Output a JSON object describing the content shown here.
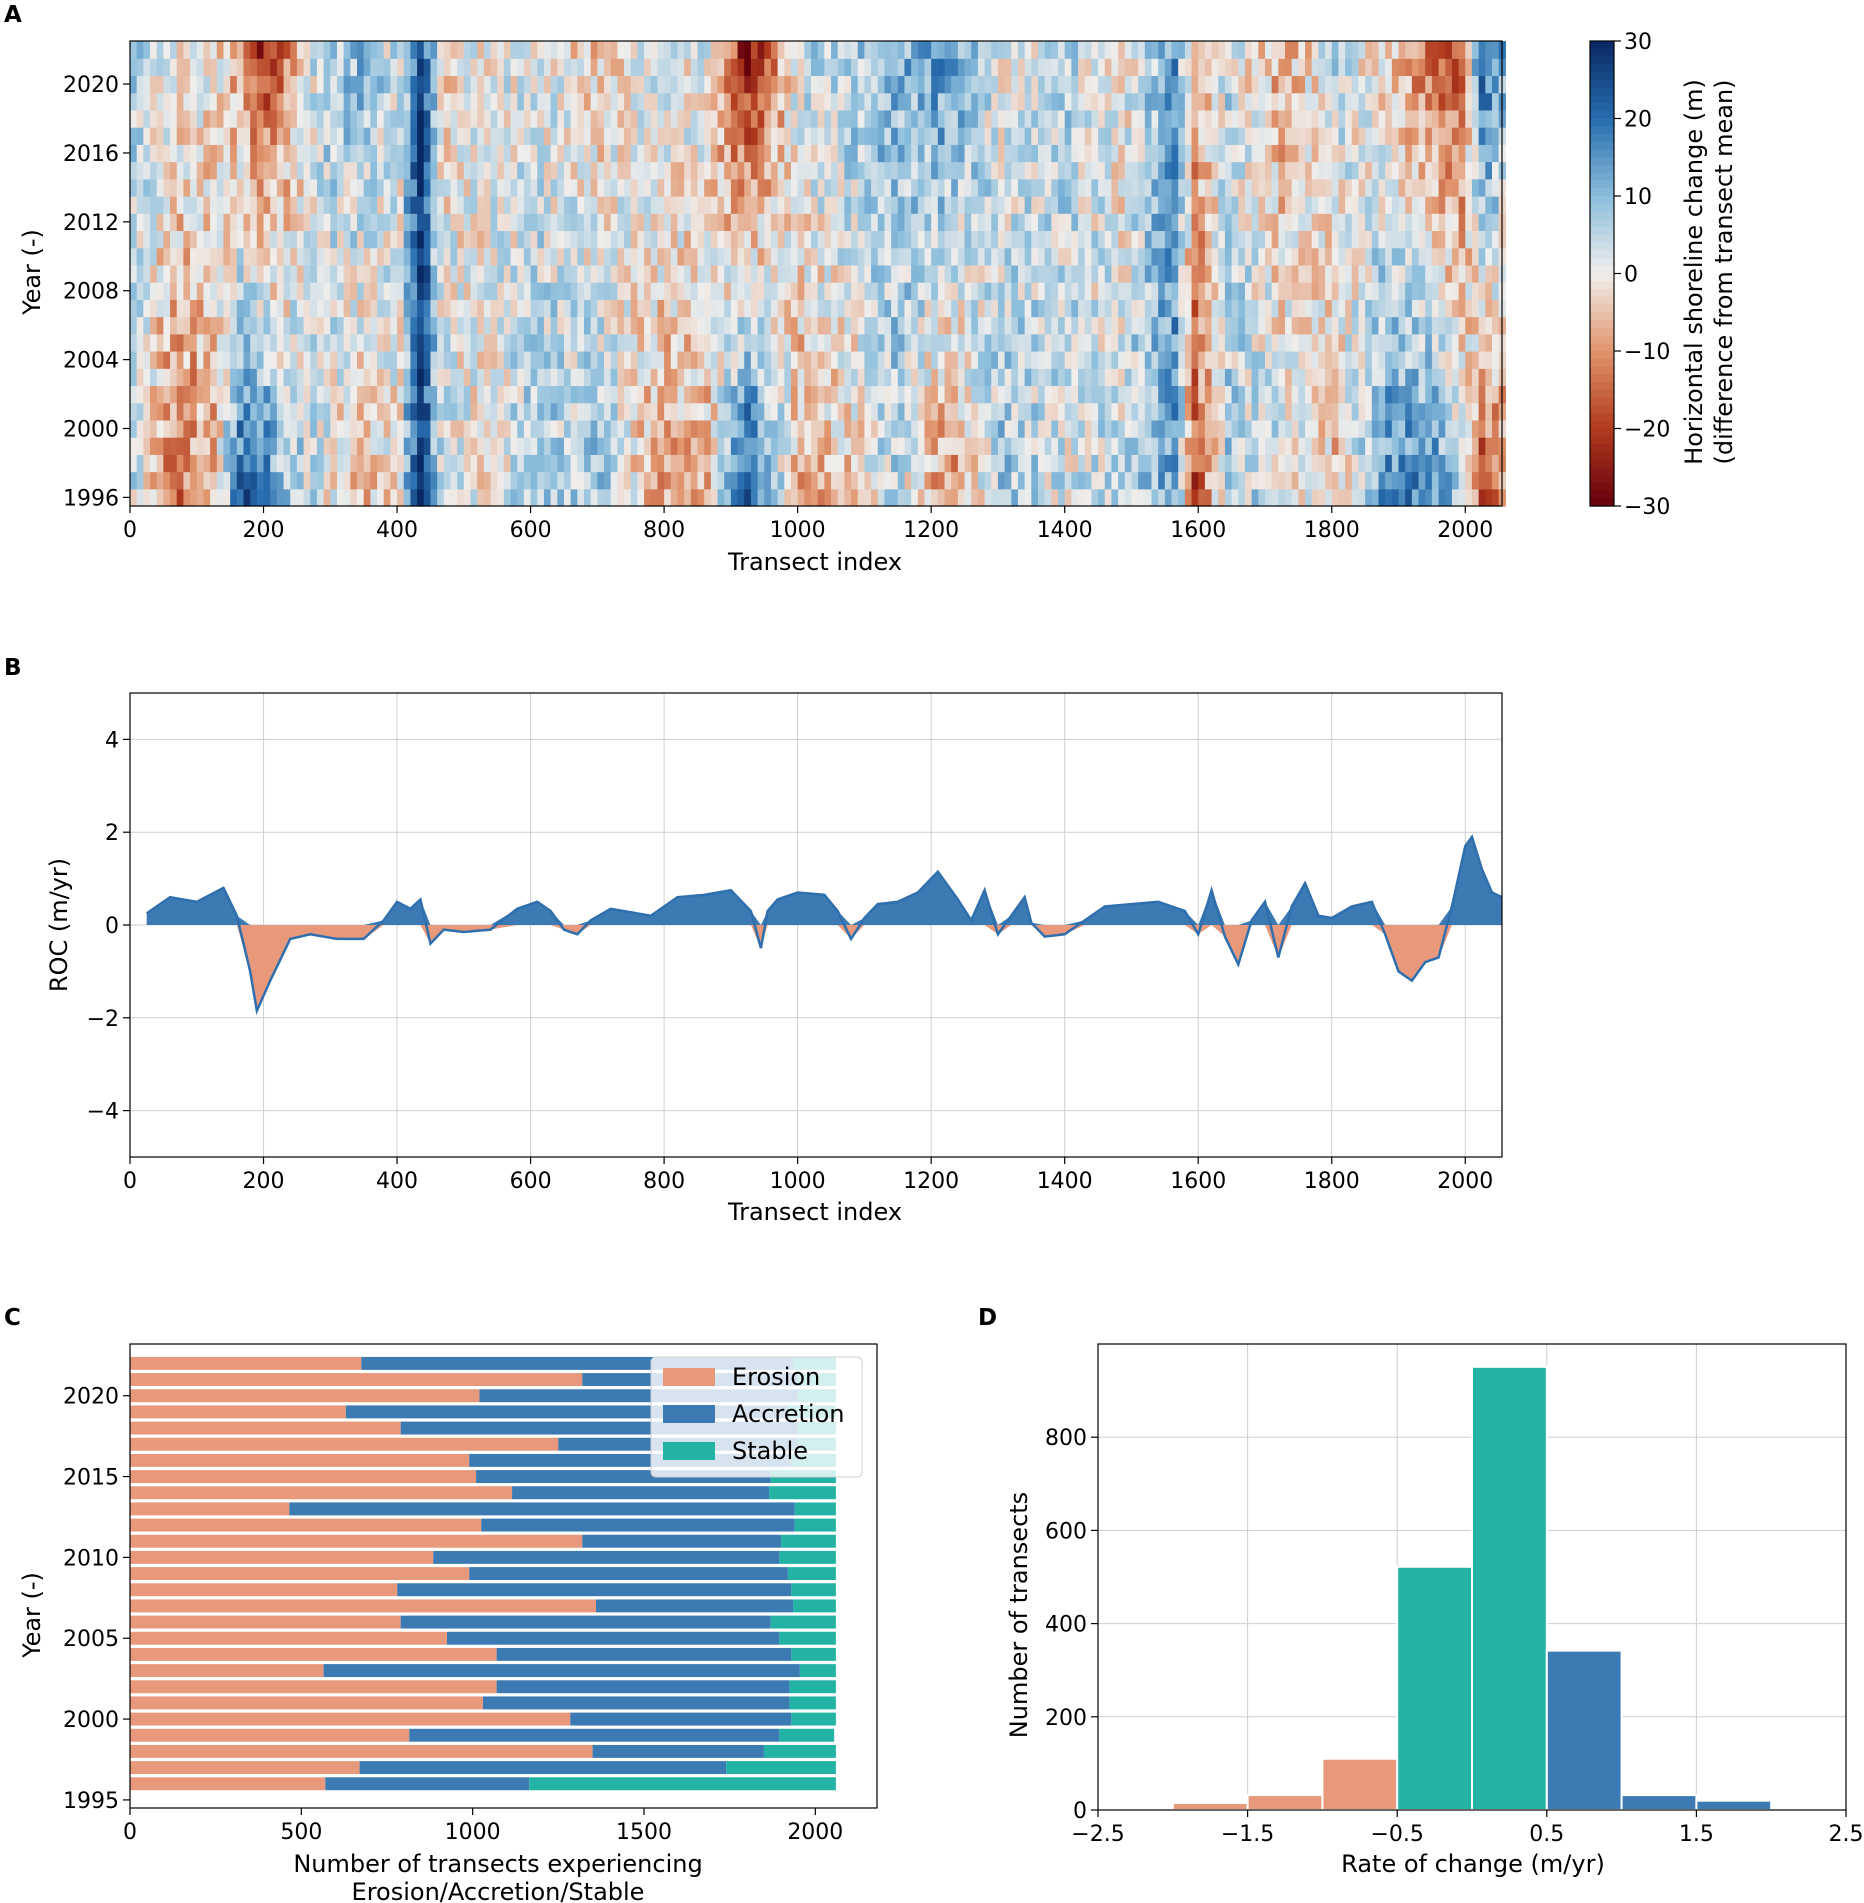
{
  "panels": {
    "a": "A",
    "b": "B",
    "c": "C",
    "d": "D"
  },
  "chart_data": [
    {
      "panel": "A",
      "type": "heatmap",
      "xlabel": "Transect index",
      "ylabel": "Year (-)",
      "xlim": [
        0,
        2055
      ],
      "ylim": [
        1995.5,
        2022.5
      ],
      "xticks": [
        0,
        200,
        400,
        600,
        800,
        1000,
        1200,
        1400,
        1600,
        1800,
        2000
      ],
      "yticks": [
        1996,
        2000,
        2004,
        2008,
        2012,
        2016,
        2020
      ],
      "colorbar": {
        "label_line1": "Horizontal shoreline change (m)",
        "label_line2": "(difference from transect mean)",
        "range": [
          -30,
          30
        ],
        "ticks": [
          "−30",
          "−20",
          "−10",
          "0",
          "10",
          "20",
          "30"
        ],
        "colormap": "red-white-blue"
      },
      "years": [
        1996,
        1997,
        1998,
        1999,
        2000,
        2001,
        2002,
        2003,
        2004,
        2005,
        2006,
        2007,
        2008,
        2009,
        2010,
        2011,
        2012,
        2013,
        2014,
        2015,
        2016,
        2017,
        2018,
        2019,
        2020,
        2021,
        2022
      ],
      "column_pattern": [
        {
          "x": 0,
          "early": 4,
          "late": 6
        },
        {
          "x": 60,
          "early": -14,
          "late": 2
        },
        {
          "x": 120,
          "early": -8,
          "late": 0
        },
        {
          "x": 160,
          "early": 20,
          "late": -10
        },
        {
          "x": 190,
          "early": 22,
          "late": -22
        },
        {
          "x": 220,
          "early": 10,
          "late": -14
        },
        {
          "x": 280,
          "early": 2,
          "late": 6
        },
        {
          "x": 340,
          "early": -6,
          "late": 10
        },
        {
          "x": 400,
          "early": 0,
          "late": 2
        },
        {
          "x": 430,
          "early": 28,
          "late": 28
        },
        {
          "x": 460,
          "early": 4,
          "late": -2
        },
        {
          "x": 520,
          "early": 0,
          "late": 0
        },
        {
          "x": 600,
          "early": 6,
          "late": 2
        },
        {
          "x": 700,
          "early": 8,
          "late": -4
        },
        {
          "x": 780,
          "early": -8,
          "late": 4
        },
        {
          "x": 860,
          "early": -6,
          "late": 0
        },
        {
          "x": 920,
          "early": 26,
          "late": -26
        },
        {
          "x": 1000,
          "early": -8,
          "late": 4
        },
        {
          "x": 1080,
          "early": -4,
          "late": 8
        },
        {
          "x": 1140,
          "early": 6,
          "late": 10
        },
        {
          "x": 1220,
          "early": -12,
          "late": 16
        },
        {
          "x": 1300,
          "early": 8,
          "late": 0
        },
        {
          "x": 1400,
          "early": 2,
          "late": 6
        },
        {
          "x": 1480,
          "early": 4,
          "late": -2
        },
        {
          "x": 1560,
          "early": 14,
          "late": 14
        },
        {
          "x": 1590,
          "early": -18,
          "late": -6
        },
        {
          "x": 1640,
          "early": 6,
          "late": 4
        },
        {
          "x": 1720,
          "early": 4,
          "late": -8
        },
        {
          "x": 1800,
          "early": -6,
          "late": 4
        },
        {
          "x": 1880,
          "early": 16,
          "late": -4
        },
        {
          "x": 1940,
          "early": 18,
          "late": -16
        },
        {
          "x": 1990,
          "early": 6,
          "late": -18
        },
        {
          "x": 2020,
          "early": -20,
          "late": 24
        },
        {
          "x": 2055,
          "early": -10,
          "late": 10
        }
      ]
    },
    {
      "panel": "B",
      "type": "area",
      "xlabel": "Transect index",
      "ylabel": "ROC (m/yr)",
      "xlim": [
        0,
        2055
      ],
      "ylim": [
        -5,
        5
      ],
      "xticks": [
        0,
        200,
        400,
        600,
        800,
        1000,
        1200,
        1400,
        1600,
        1800,
        2000
      ],
      "yticks": [
        -4,
        -2,
        0,
        2,
        4
      ],
      "grid": true,
      "x": [
        25,
        60,
        100,
        140,
        160,
        180,
        190,
        210,
        240,
        270,
        310,
        350,
        380,
        400,
        420,
        435,
        450,
        470,
        500,
        540,
        580,
        610,
        630,
        650,
        670,
        690,
        720,
        780,
        820,
        860,
        900,
        930,
        945,
        955,
        970,
        1000,
        1040,
        1060,
        1080,
        1100,
        1120,
        1150,
        1180,
        1210,
        1240,
        1260,
        1280,
        1300,
        1320,
        1340,
        1350,
        1370,
        1400,
        1430,
        1460,
        1500,
        1540,
        1580,
        1600,
        1620,
        1640,
        1660,
        1680,
        1700,
        1720,
        1740,
        1760,
        1780,
        1800,
        1830,
        1860,
        1880,
        1900,
        1920,
        1940,
        1960,
        1980,
        2000,
        2010,
        2025,
        2040,
        2055
      ],
      "values": [
        0.25,
        0.6,
        0.5,
        0.8,
        0.2,
        -1.0,
        -1.85,
        -1.2,
        -0.3,
        -0.2,
        -0.3,
        -0.3,
        0.1,
        0.5,
        0.35,
        0.55,
        -0.4,
        -0.1,
        -0.15,
        -0.1,
        0.35,
        0.5,
        0.3,
        -0.1,
        -0.2,
        0.1,
        0.35,
        0.2,
        0.6,
        0.65,
        0.75,
        0.3,
        -0.5,
        0.3,
        0.55,
        0.7,
        0.65,
        0.3,
        -0.3,
        0.15,
        0.45,
        0.5,
        0.7,
        1.15,
        0.55,
        0.1,
        0.75,
        -0.2,
        0.2,
        0.6,
        0.05,
        -0.25,
        -0.2,
        0.1,
        0.4,
        0.45,
        0.5,
        0.3,
        -0.2,
        0.75,
        -0.25,
        -0.85,
        0.1,
        0.5,
        -0.7,
        0.4,
        0.9,
        0.2,
        0.15,
        0.4,
        0.5,
        -0.2,
        -1.0,
        -1.2,
        -0.8,
        -0.7,
        0.4,
        1.7,
        1.9,
        1.2,
        0.7,
        0.6
      ],
      "colors": {
        "positive": "#3b7ab3",
        "negative": "#e8997c",
        "line": "#2f6fad"
      }
    },
    {
      "panel": "C",
      "type": "bar",
      "orientation": "horizontal",
      "stacked": true,
      "xlabel_line1": "Number of transects experiencing",
      "xlabel_line2": "Erosion/Accretion/Stable",
      "ylabel": "Year (-)",
      "xlim": [
        0,
        2180
      ],
      "ylim": [
        1994.5,
        2023.2
      ],
      "xticks": [
        0,
        500,
        1000,
        1500,
        2000
      ],
      "yticks": [
        1995,
        2000,
        2005,
        2010,
        2015,
        2020
      ],
      "legend": {
        "placement": "top-right",
        "entries": [
          "Erosion",
          "Accretion",
          "Stable"
        ]
      },
      "categories": [
        1996,
        1997,
        1998,
        1999,
        2000,
        2001,
        2002,
        2003,
        2004,
        2005,
        2006,
        2007,
        2008,
        2009,
        2010,
        2011,
        2012,
        2013,
        2014,
        2015,
        2016,
        2017,
        2018,
        2019,
        2020,
        2021,
        2022
      ],
      "series": [
        {
          "name": "Erosion",
          "color": "#e8997c",
          "values": [
            570,
            670,
            1350,
            815,
            1285,
            1030,
            1070,
            565,
            1070,
            925,
            790,
            1360,
            780,
            990,
            885,
            1320,
            1025,
            465,
            1115,
            1010,
            990,
            1250,
            790,
            630,
            1020,
            1320,
            675
          ]
        },
        {
          "name": "Accretion",
          "color": "#3b7ab3",
          "values": [
            595,
            1070,
            500,
            1080,
            645,
            895,
            855,
            1390,
            860,
            970,
            1080,
            575,
            1150,
            930,
            1010,
            580,
            915,
            1475,
            750,
            860,
            940,
            700,
            1160,
            1290,
            930,
            630,
            1260
          ]
        },
        {
          "name": "Stable",
          "color": "#22b3a5",
          "values": [
            895,
            320,
            210,
            160,
            130,
            135,
            135,
            105,
            130,
            165,
            190,
            125,
            130,
            140,
            165,
            160,
            120,
            120,
            195,
            190,
            130,
            110,
            110,
            140,
            110,
            110,
            125
          ]
        }
      ]
    },
    {
      "panel": "D",
      "type": "bar",
      "histogram": true,
      "xlabel": "Rate of change (m/yr)",
      "ylabel": "Number of transects",
      "xlim": [
        -2.5,
        2.5
      ],
      "ylim": [
        0,
        1000
      ],
      "xticks": [
        "−2.5",
        "−1.5",
        "−0.5",
        "0.5",
        "1.5",
        "2.5"
      ],
      "xtick_values": [
        -2.5,
        -1.5,
        -0.5,
        0.5,
        1.5,
        2.5
      ],
      "yticks": [
        0,
        200,
        400,
        600,
        800
      ],
      "grid": true,
      "bins": [
        [
          -2.0,
          -1.5
        ],
        [
          -1.5,
          -1.0
        ],
        [
          -1.0,
          -0.5
        ],
        [
          -0.5,
          0.0
        ],
        [
          0.0,
          0.5
        ],
        [
          0.5,
          1.0
        ],
        [
          1.0,
          1.5
        ],
        [
          1.5,
          2.0
        ]
      ],
      "values": [
        15,
        32,
        110,
        522,
        951,
        342,
        32,
        20
      ],
      "colors": [
        "#e8997c",
        "#e8997c",
        "#e8997c",
        "#22b3a5",
        "#22b3a5",
        "#3b7ab3",
        "#3b7ab3",
        "#3b7ab3"
      ]
    }
  ]
}
